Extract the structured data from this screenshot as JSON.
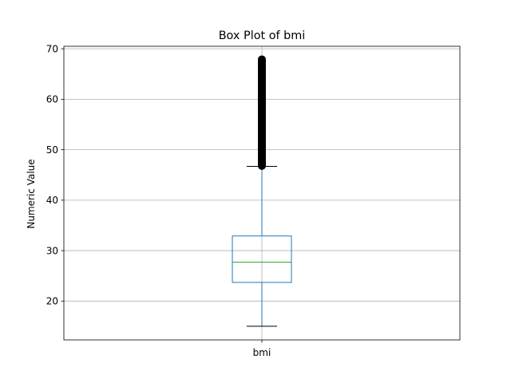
{
  "chart_data": {
    "type": "box",
    "title": "Box Plot of bmi",
    "xlabel": "",
    "ylabel": "Numeric Value",
    "categories": [
      "bmi"
    ],
    "ylim": [
      12.3,
      70.5
    ],
    "y_ticks": [
      20,
      30,
      40,
      50,
      60,
      70
    ],
    "grid": true,
    "boxes": [
      {
        "category": "bmi",
        "whisker_low": 15.0,
        "q1": 23.7,
        "median": 27.7,
        "q3": 32.9,
        "whisker_high": 46.7,
        "outliers_range": [
          46.8,
          67.9
        ]
      }
    ],
    "colors": {
      "box": "#1f77b4",
      "median": "#2ca02c",
      "whisker_cap": "#000000",
      "outlier": "#000000",
      "grid": "#b0b0b0"
    }
  }
}
